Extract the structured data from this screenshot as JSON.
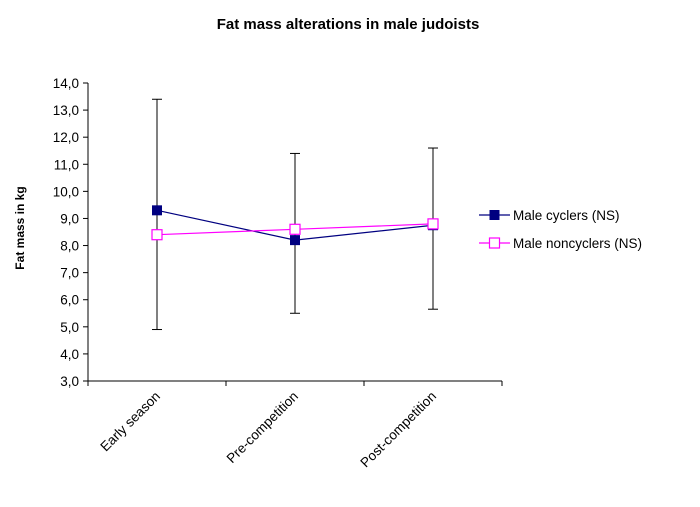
{
  "chart_data": {
    "type": "line",
    "title": "Fat mass alterations in male judoists",
    "xlabel": "",
    "ylabel": "Fat mass in kg",
    "ylim": [
      3.0,
      14.0
    ],
    "y_ticks": [
      "3,0",
      "4,0",
      "5,0",
      "6,0",
      "7,0",
      "8,0",
      "9,0",
      "10,0",
      "11,0",
      "12,0",
      "13,0",
      "14,0"
    ],
    "categories": [
      "Early season",
      "Pre-competition",
      "Post-competition"
    ],
    "series": [
      {
        "name": "Male cyclers (NS)",
        "color": "#000080",
        "marker": "filled-square",
        "values": [
          9.3,
          8.2,
          8.75
        ],
        "error_low": [
          4.9,
          5.5,
          5.65
        ],
        "error_high": [
          13.4,
          11.4,
          11.6
        ]
      },
      {
        "name": "Male noncyclers (NS)",
        "color": "#FF00FF",
        "marker": "hollow-square",
        "values": [
          8.4,
          8.6,
          8.8
        ]
      }
    ],
    "grid": false,
    "legend_position": "right"
  }
}
